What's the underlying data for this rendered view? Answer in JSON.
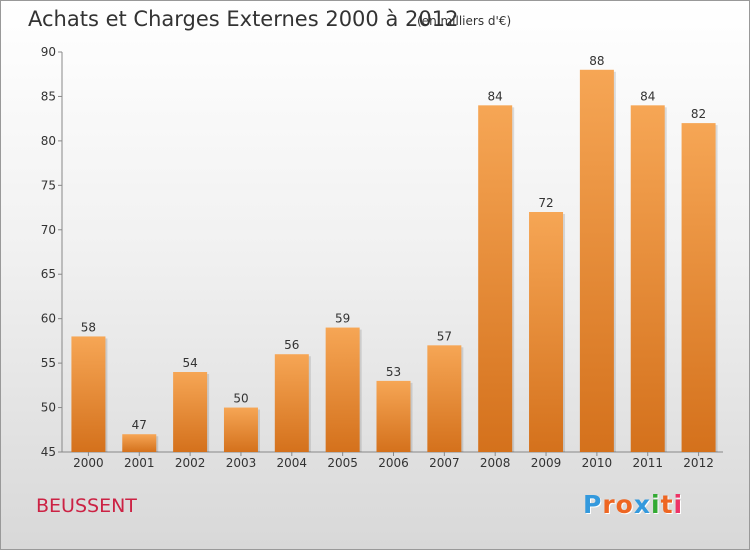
{
  "title": "Achats et Charges Externes 2000 à 2012",
  "unit": "(en milliers d'€)",
  "commune": "BEUSSENT",
  "logo": {
    "letters": [
      "P",
      "r",
      "o",
      "x",
      "i",
      "t",
      "i"
    ],
    "colors": [
      "#3399dd",
      "#ee6622",
      "#ee6622",
      "#3399dd",
      "#33aa33",
      "#ee6622",
      "#ee3366"
    ]
  },
  "colors": {
    "bar": "#f08a2e",
    "text": "#333333",
    "commune": "#cc2244"
  },
  "chart_data": {
    "type": "bar",
    "categories": [
      "2000",
      "2001",
      "2002",
      "2003",
      "2004",
      "2005",
      "2006",
      "2007",
      "2008",
      "2009",
      "2010",
      "2011",
      "2012"
    ],
    "values": [
      58,
      47,
      54,
      50,
      56,
      59,
      53,
      57,
      84,
      72,
      88,
      84,
      82
    ],
    "ylim": [
      45,
      90
    ],
    "yticks": [
      45,
      50,
      55,
      60,
      65,
      70,
      75,
      80,
      85,
      90
    ],
    "grid": false,
    "data_labels": true
  }
}
